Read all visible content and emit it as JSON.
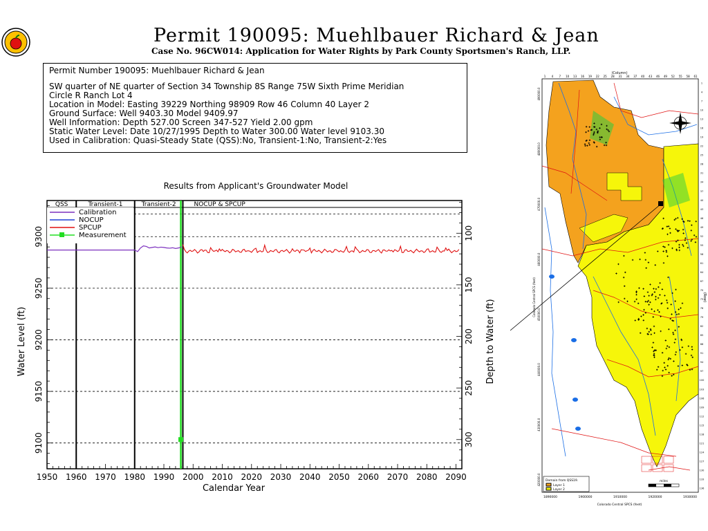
{
  "header": {
    "title": "Permit 190095:  Muehlbauer Richard & Jean",
    "subtitle": "Case No. 96CW014: Application for Water Rights by Park County Sportsmen's Ranch, LLP."
  },
  "info": {
    "lines": [
      "Permit Number 190095: Muehlbauer Richard & Jean",
      "SW quarter of NE quarter of Section 34 Township 8S Range 75W Sixth Prime Meridian",
      "Circle R Ranch Lot 4",
      "Location in Model: Easting 39229 Northing  98909 Row  46 Column 40 Layer 2",
      "Ground Surface: Well  9403.30 Model  9409.97",
      "Well Information: Depth   527.00 Screen 347-527 Yield     2.00 gpm",
      "Static Water Level: Date 10/27/1995 Depth to Water   300.00 Water level  9103.30",
      "Used in Calibration: Quasi-Steady State (QSS):No, Transient-1:No, Transient-2:Yes"
    ]
  },
  "chart_data": {
    "type": "line",
    "title": "Results from Applicant's Groundwater Model",
    "xlabel": "Calendar Year",
    "ylabel": "Water Level (ft)",
    "y2label": "Depth to Water (ft)",
    "xlim": [
      1950,
      2092
    ],
    "ylim": [
      9075,
      9335
    ],
    "y2_reference_ground": 9403.3,
    "x_ticks": [
      1950,
      1960,
      1970,
      1980,
      1990,
      2000,
      2010,
      2020,
      2030,
      2040,
      2050,
      2060,
      2070,
      2080,
      2090
    ],
    "y_ticks": [
      9100,
      9150,
      9200,
      9250,
      9300
    ],
    "y2_ticks": [
      100,
      150,
      200,
      250,
      300
    ],
    "periods": [
      {
        "label": "QSS",
        "start": 1950,
        "end": 1960
      },
      {
        "label": "Transient-1",
        "start": 1960,
        "end": 1980
      },
      {
        "label": "Transient-2",
        "start": 1980,
        "end": 1996.5
      },
      {
        "label": "NOCUP  &  SPCUP",
        "start": 1996.5,
        "end": 2092
      }
    ],
    "vertical_markers": [
      1960,
      1980,
      1996.5
    ],
    "green_marker_year": 1995.8,
    "legend": {
      "placement": "top-left",
      "entries": [
        {
          "name": "Calibration",
          "color": "#7b2fbe"
        },
        {
          "name": "NOCUP",
          "color": "#1f3fd6"
        },
        {
          "name": "SPCUP",
          "color": "#e01010"
        },
        {
          "name": "Measurement",
          "color": "#22dd22"
        }
      ]
    },
    "series": [
      {
        "name": "Calibration",
        "color": "#7b2fbe",
        "x": [
          1950,
          1980,
          1981,
          1982,
          1983,
          1984,
          1985,
          1986,
          1987,
          1988,
          1989,
          1990,
          1991,
          1992,
          1993,
          1994,
          1995,
          1996
        ],
        "y": [
          9287,
          9287,
          9285.5,
          9289,
          9291,
          9290.5,
          9289,
          9289.5,
          9290,
          9289.3,
          9289.8,
          9289.5,
          9289,
          9288.8,
          9289.2,
          9288.5,
          9289,
          9290
        ]
      },
      {
        "name": "SPCUP",
        "color": "#e01010",
        "start": 1996.5,
        "end": 2091,
        "base": 9287.5,
        "amplitude": 5.5,
        "period": 3.1
      },
      {
        "name": "Measurement",
        "color": "#22dd22",
        "x": [
          1995.8
        ],
        "y": [
          9103.3
        ]
      }
    ]
  },
  "map": {
    "top_label": "(Column)",
    "left_label": "Colorado Central SPCS (feet)",
    "right_label": "(Row)",
    "bottom_label": "Colorado Central SPCS (feet)",
    "legend_title": "Domain  from  QSS19.",
    "legend_layer1": "Layer 1",
    "legend_layer2": "Layer 2",
    "scale_label": "miles",
    "x_ticks": [
      "1890000",
      "1900000",
      "1910000",
      "1920000",
      "1930000"
    ],
    "y_ticks": [
      "420000.0",
      "430000.0",
      "440000.0",
      "450000.0",
      "460000.0",
      "470000.0",
      "480000.0",
      "490000.0"
    ],
    "column_ticks": [
      "1",
      "4",
      "7",
      "10",
      "13",
      "16",
      "19",
      "22",
      "25",
      "28",
      "31",
      "34",
      "37",
      "40",
      "43",
      "46",
      "49",
      "52",
      "55",
      "58",
      "61"
    ],
    "row_ticks": [
      "1",
      "4",
      "7",
      "10",
      "13",
      "16",
      "19",
      "22",
      "25",
      "28",
      "31",
      "34",
      "37",
      "40",
      "43",
      "46",
      "49",
      "52",
      "55",
      "58",
      "61",
      "64",
      "67",
      "70",
      "73",
      "76",
      "79",
      "82",
      "85",
      "88",
      "91",
      "94",
      "97",
      "100",
      "103",
      "106",
      "109",
      "112",
      "115",
      "118",
      "121",
      "124",
      "127",
      "130",
      "133",
      "136"
    ],
    "layer1_color": "#f4a21e",
    "layer2_color": "#f6f60a"
  }
}
